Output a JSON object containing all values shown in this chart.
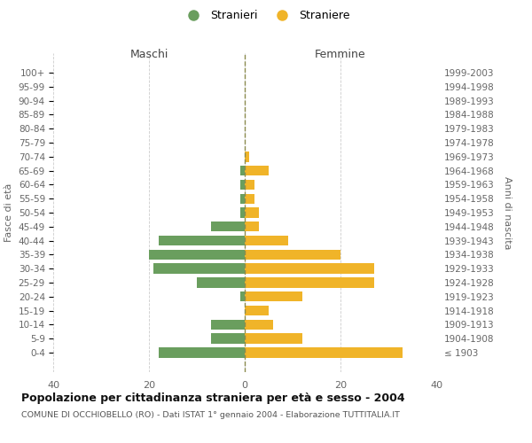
{
  "age_groups": [
    "100+",
    "95-99",
    "90-94",
    "85-89",
    "80-84",
    "75-79",
    "70-74",
    "65-69",
    "60-64",
    "55-59",
    "50-54",
    "45-49",
    "40-44",
    "35-39",
    "30-34",
    "25-29",
    "20-24",
    "15-19",
    "10-14",
    "5-9",
    "0-4"
  ],
  "birth_years": [
    "≤ 1903",
    "1904-1908",
    "1909-1913",
    "1914-1918",
    "1919-1923",
    "1924-1928",
    "1929-1933",
    "1934-1938",
    "1939-1943",
    "1944-1948",
    "1949-1953",
    "1954-1958",
    "1959-1963",
    "1964-1968",
    "1969-1973",
    "1974-1978",
    "1979-1983",
    "1984-1988",
    "1989-1993",
    "1994-1998",
    "1999-2003"
  ],
  "maschi": [
    0,
    0,
    0,
    0,
    0,
    0,
    0,
    1,
    1,
    1,
    1,
    7,
    18,
    20,
    19,
    10,
    1,
    0,
    7,
    7,
    18
  ],
  "femmine": [
    0,
    0,
    0,
    0,
    0,
    0,
    1,
    5,
    2,
    2,
    3,
    3,
    9,
    20,
    27,
    27,
    12,
    5,
    6,
    12,
    33
  ],
  "color_maschi": "#6a9e5e",
  "color_femmine": "#f0b429",
  "title": "Popolazione per cittadinanza straniera per età e sesso - 2004",
  "subtitle": "COMUNE DI OCCHIOBELLO (RO) - Dati ISTAT 1° gennaio 2004 - Elaborazione TUTTITALIA.IT",
  "label_maschi": "Maschi",
  "label_femmine": "Femmine",
  "ylabel_left": "Fasce di età",
  "ylabel_right": "Anni di nascita",
  "xlim": 40,
  "legend_stranieri": "Stranieri",
  "legend_straniere": "Straniere",
  "bg_color": "#ffffff",
  "grid_color": "#cccccc",
  "center_line_color": "#8b8b4e"
}
